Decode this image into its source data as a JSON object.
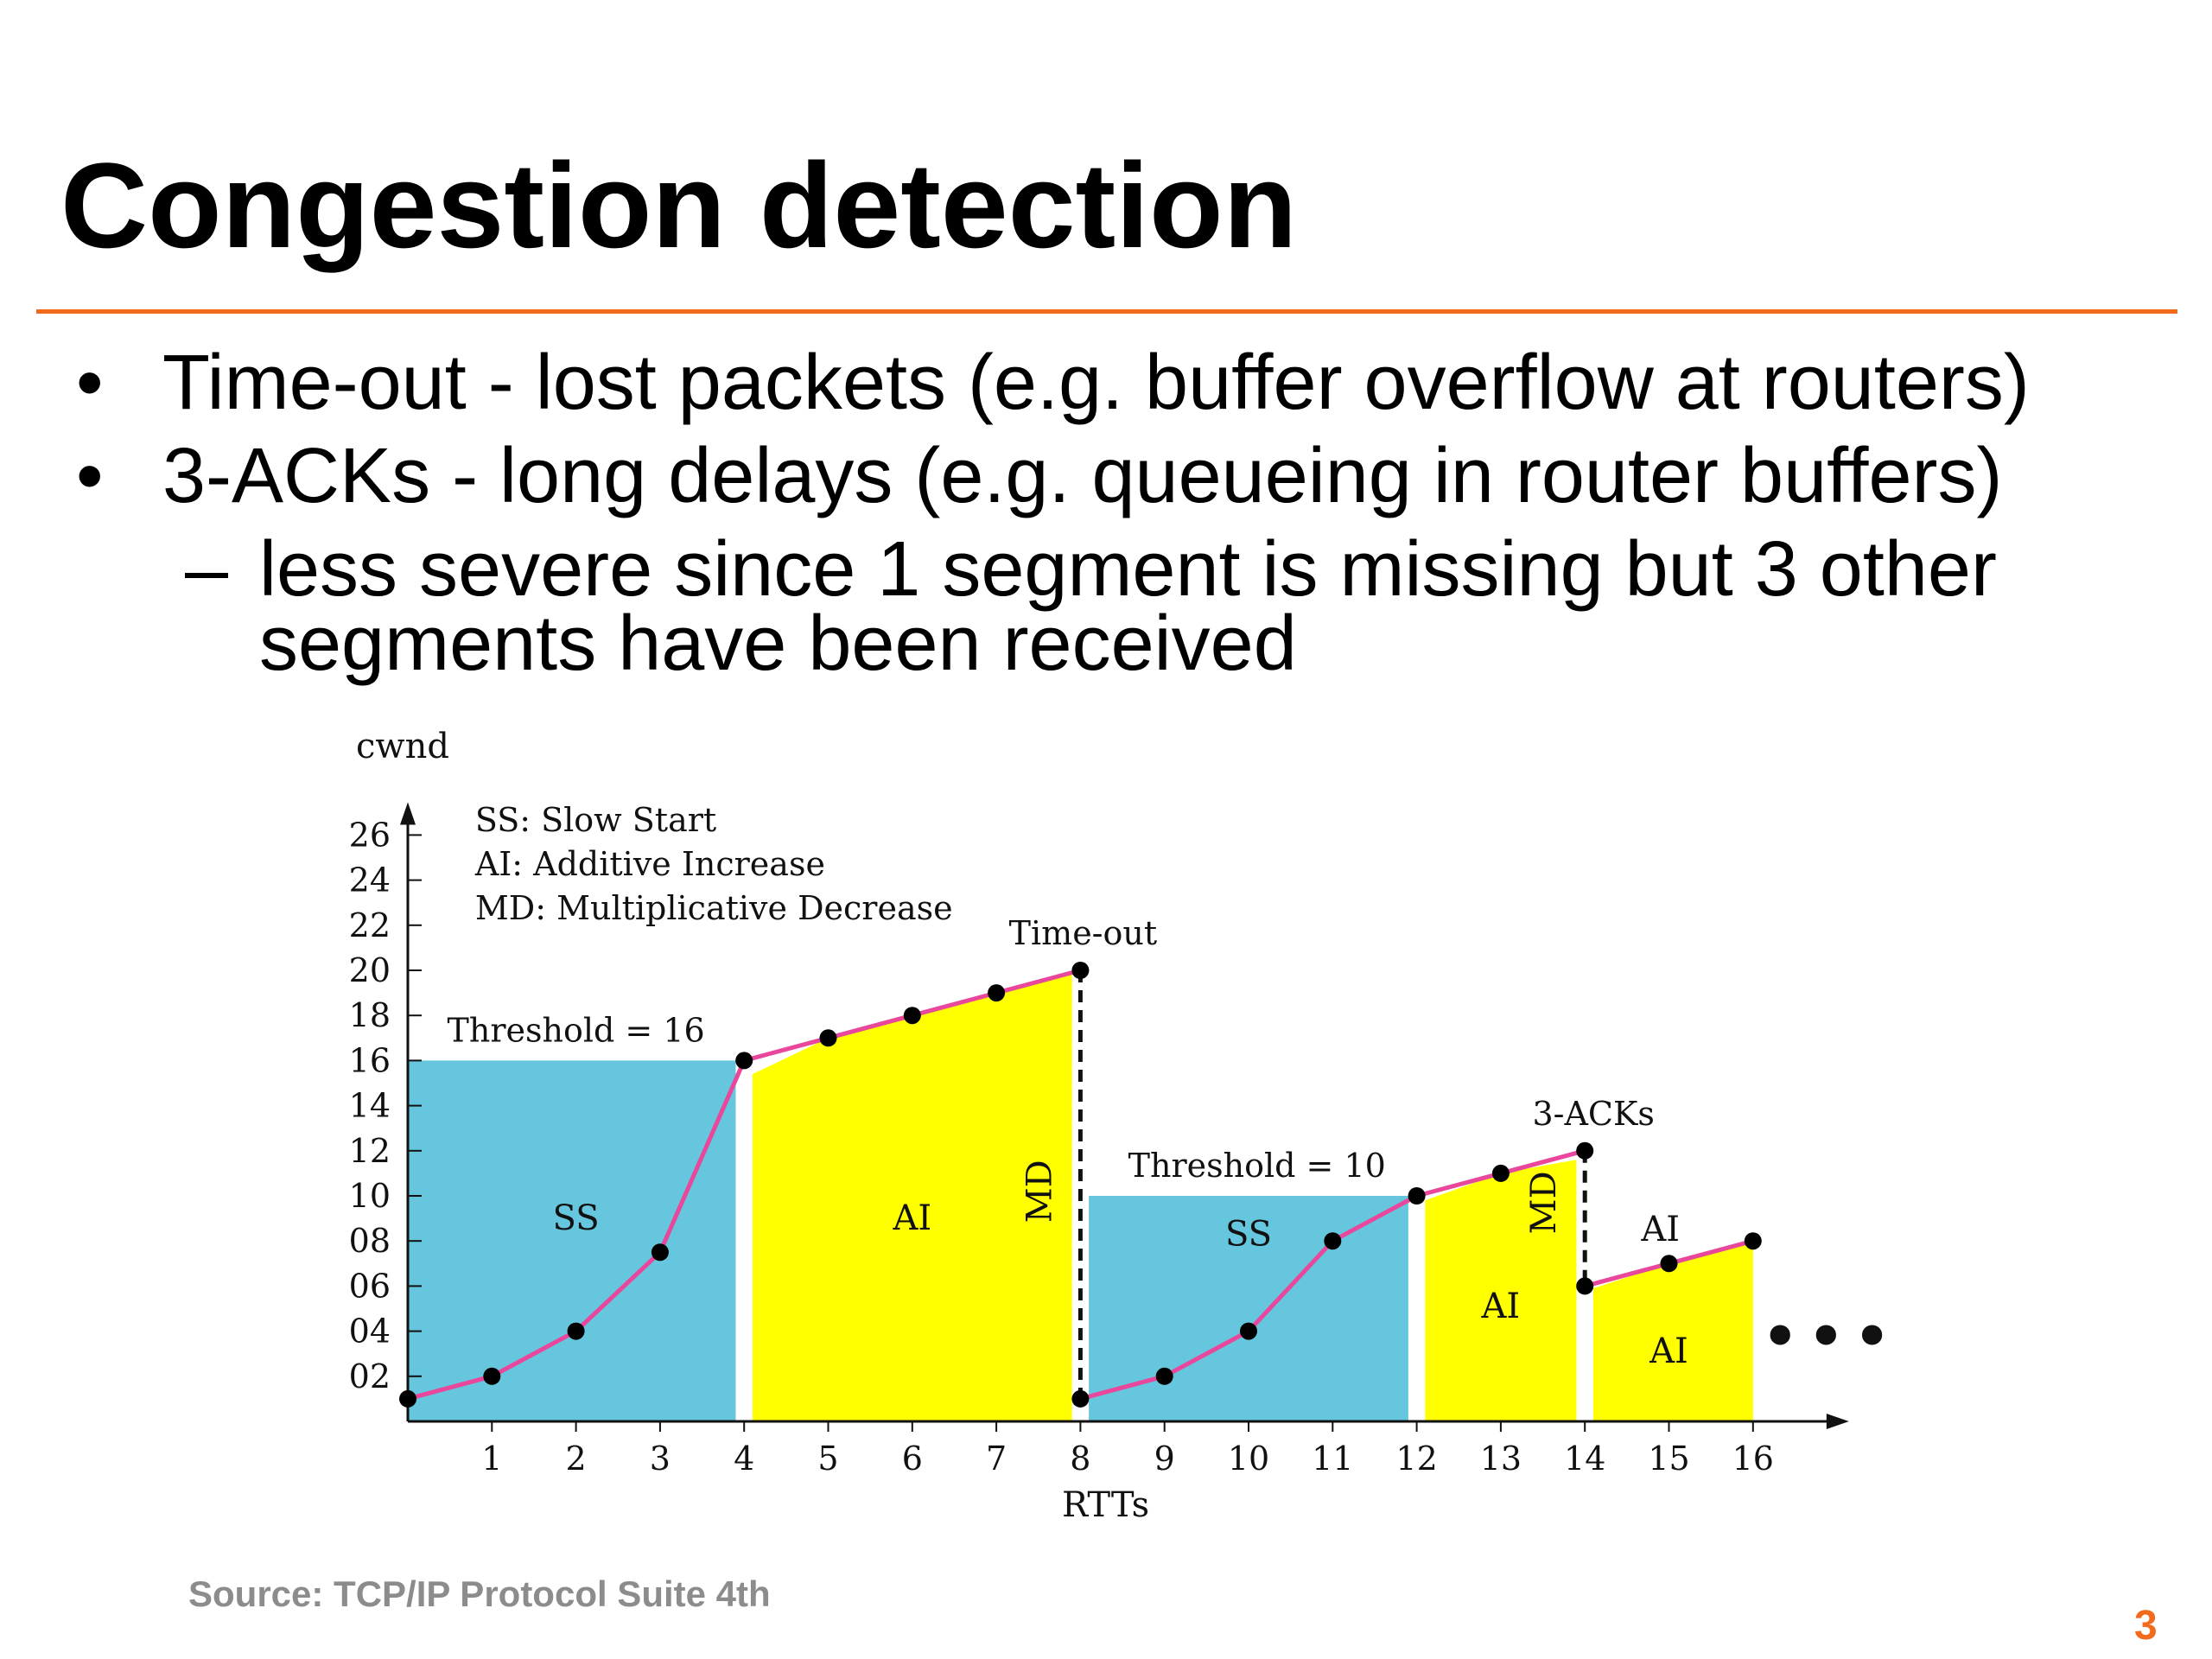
{
  "slide": {
    "title": "Congestion detection",
    "bullets": [
      {
        "marker": "•",
        "text": "Time-out - lost packets (e.g. buffer overflow at routers)"
      },
      {
        "marker": "•",
        "text": "3-ACKs - long delays (e.g. queueing in router buffers)"
      },
      {
        "marker": "–",
        "text": "less severe since 1 segment is missing but 3 other",
        "continuation": "segments have been received"
      }
    ],
    "source": "Source: TCP/IP Protocol Suite 4th",
    "page_number": "3"
  },
  "colors": {
    "accent": "#F26B1D",
    "ss_fill": "#66C6DE",
    "ai_fill": "#FFFF00",
    "cwnd_line": "#E8479C",
    "text": "#000000",
    "source_text": "#8C8C8C"
  },
  "chart_data": {
    "type": "line",
    "xlabel": "RTTs",
    "ylabel": "cwnd",
    "x_ticks": [
      1,
      2,
      3,
      4,
      5,
      6,
      7,
      8,
      9,
      10,
      11,
      12,
      13,
      14,
      15,
      16
    ],
    "y_ticks": [
      "02",
      "04",
      "06",
      "08",
      "10",
      "12",
      "14",
      "16",
      "18",
      "20",
      "22",
      "24",
      "26"
    ],
    "xlim": [
      0,
      17
    ],
    "ylim": [
      0,
      28
    ],
    "series": [
      {
        "x": [
          0,
          1,
          2,
          3,
          4,
          5,
          6,
          7,
          8,
          8,
          9,
          10,
          11,
          12,
          13,
          14,
          14,
          15,
          16
        ],
        "y": [
          1,
          2,
          4,
          7.5,
          16,
          17,
          18,
          19,
          20,
          1,
          2,
          4,
          8,
          10,
          11,
          12,
          6,
          7,
          8
        ]
      }
    ],
    "legend": [
      "SS: Slow Start",
      "AI: Additive Increase",
      "MD: Multiplicative Decrease"
    ],
    "regions": [
      {
        "label": "SS",
        "x0": 0,
        "x1": 4
      },
      {
        "label": "AI",
        "x0": 4,
        "x1": 8
      },
      {
        "label": "SS",
        "x0": 8,
        "x1": 12
      },
      {
        "label": "AI",
        "x0": 12,
        "x1": 14
      },
      {
        "label": "AI",
        "x0": 14,
        "x1": 16
      }
    ],
    "thresholds": [
      {
        "label": "Threshold = 16",
        "value": 16,
        "x0": 0,
        "x1": 4
      },
      {
        "label": "Threshold = 10",
        "value": 10,
        "x0": 8,
        "x1": 12
      }
    ],
    "md_markers": [
      {
        "label": "MD",
        "x": 8,
        "from": 20,
        "to": 1
      },
      {
        "label": "MD",
        "x": 14,
        "from": 12,
        "to": 6
      }
    ],
    "event_labels": [
      {
        "label": "Time-out",
        "x": 8,
        "y": 20
      },
      {
        "label": "3-ACKs",
        "x": 14,
        "y": 12
      }
    ],
    "additional_ai_label": {
      "label": "AI",
      "x": 14.9,
      "y": 8
    },
    "continuation_mark": "•••"
  }
}
